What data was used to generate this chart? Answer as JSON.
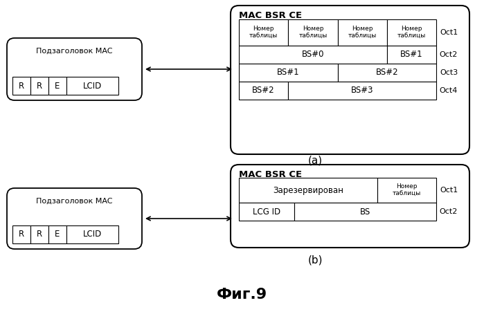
{
  "title": "Фиг.9",
  "panel_a_label": "(a)",
  "panel_b_label": "(b)",
  "mac_header_title": "Подзаголовок MAC",
  "mac_bsr_title": "MAC BSR CE",
  "header_cells": [
    "R",
    "R",
    "E",
    "LCID"
  ],
  "oct_labels_a": [
    "Oct1",
    "Oct2",
    "Oct3",
    "Oct4"
  ],
  "oct_labels_b": [
    "Oct1",
    "Oct2"
  ],
  "table_a_row1": [
    "Номер\nтаблицы",
    "Номер\nтаблицы",
    "Номер\nтаблицы",
    "Номер\nтаблицы"
  ],
  "table_a_row2_span": "BS#0",
  "table_a_row2_right": "BS#1",
  "table_a_row3_left": "BS#1",
  "table_a_row3_right": "BS#2",
  "table_a_row4_left": "BS#2",
  "table_a_row4_right": "BS#3",
  "table_b_row1_left": "Зарезервирован",
  "table_b_row1_right": "Номер\nтаблицы",
  "table_b_row2_left": "LCG ID",
  "table_b_row2_right": "BS",
  "bg_color": "#ffffff",
  "text_color": "#000000"
}
